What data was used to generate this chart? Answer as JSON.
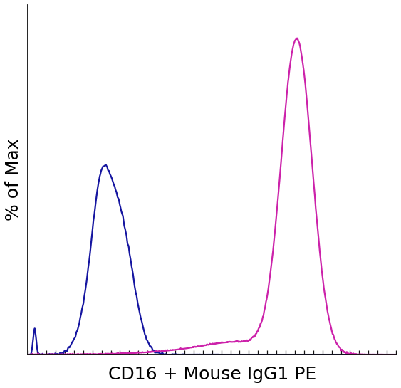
{
  "title": "",
  "xlabel": "CD16 + Mouse IgG1 PE",
  "ylabel": "% of Max",
  "xlabel_fontsize": 18,
  "ylabel_fontsize": 18,
  "blue_color": "#1515a0",
  "magenta_color": "#cc22aa",
  "linewidth": 1.6,
  "xlim": [
    0,
    1000
  ],
  "ylim": [
    0,
    1.05
  ],
  "background_color": "#ffffff",
  "tick_color": "#111111",
  "spine_color": "#111111"
}
